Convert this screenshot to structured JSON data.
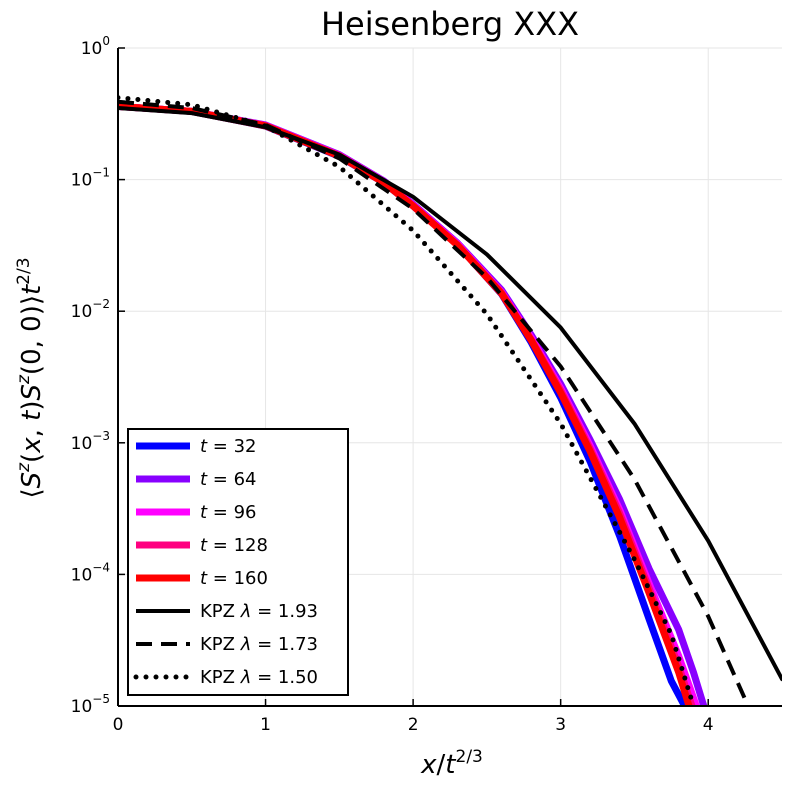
{
  "chart_data": {
    "type": "line",
    "title": "Heisenberg XXX",
    "xlabel": "x/t^{2/3}",
    "ylabel": "⟨S^z(x, t)S^z(0, 0)⟩t^{2/3}",
    "xlim": [
      0,
      4.5
    ],
    "ylim_log10": [
      -5,
      0
    ],
    "yscale": "log",
    "grid": true,
    "legend_position": "bottom-left",
    "x_ticks": [
      {
        "value": 0,
        "label": "0"
      },
      {
        "value": 1,
        "label": "1"
      },
      {
        "value": 2,
        "label": "2"
      },
      {
        "value": 3,
        "label": "3"
      },
      {
        "value": 4,
        "label": "4"
      }
    ],
    "y_ticks": [
      {
        "exp": 0,
        "base": "10",
        "sup": "0"
      },
      {
        "exp": -1,
        "base": "10",
        "sup": "−1"
      },
      {
        "exp": -2,
        "base": "10",
        "sup": "−2"
      },
      {
        "exp": -3,
        "base": "10",
        "sup": "−3"
      },
      {
        "exp": -4,
        "base": "10",
        "sup": "−4"
      },
      {
        "exp": -5,
        "base": "10",
        "sup": "−5"
      }
    ],
    "series": [
      {
        "name": "t = 32",
        "label_var": "t",
        "label_val": "32",
        "color": "#0000ff",
        "style": "solid",
        "width": 7,
        "x": [
          0,
          0.5,
          1,
          1.5,
          1.8,
          2.0,
          2.3,
          2.6,
          2.8,
          3.0,
          3.2,
          3.4,
          3.6,
          3.75,
          3.84
        ],
        "y": [
          0.36,
          0.33,
          0.255,
          0.15,
          0.095,
          0.063,
          0.032,
          0.0135,
          0.0058,
          0.0022,
          0.00072,
          0.000195,
          4.55e-05,
          1.55e-05,
          1e-05
        ]
      },
      {
        "name": "t = 64",
        "label_var": "t",
        "label_val": "64",
        "color": "#8800ff",
        "style": "solid",
        "width": 7,
        "x": [
          0,
          0.5,
          1,
          1.5,
          1.8,
          2.0,
          2.3,
          2.6,
          2.8,
          3.0,
          3.2,
          3.4,
          3.6,
          3.8,
          3.9,
          3.97
        ],
        "y": [
          0.36,
          0.33,
          0.26,
          0.155,
          0.098,
          0.065,
          0.033,
          0.0145,
          0.0066,
          0.0028,
          0.00105,
          0.00037,
          0.00011,
          3.8e-05,
          1.8e-05,
          1e-05
        ]
      },
      {
        "name": "t = 96",
        "label_var": "t",
        "label_val": "96",
        "color": "#ff00ff",
        "style": "solid",
        "width": 7,
        "x": [
          0,
          0.5,
          1,
          1.5,
          1.8,
          2.0,
          2.3,
          2.6,
          2.8,
          3.0,
          3.2,
          3.4,
          3.6,
          3.8,
          3.92
        ],
        "y": [
          0.36,
          0.33,
          0.258,
          0.153,
          0.097,
          0.064,
          0.0325,
          0.014,
          0.0063,
          0.0026,
          0.00095,
          0.00031,
          8.5e-05,
          2.4e-05,
          1e-05
        ]
      },
      {
        "name": "t = 128",
        "label_var": "t",
        "label_val": "128",
        "color": "#ff0080",
        "style": "solid",
        "width": 7,
        "x": [
          0,
          0.5,
          1,
          1.5,
          1.8,
          2.0,
          2.3,
          2.6,
          2.8,
          3.0,
          3.2,
          3.4,
          3.6,
          3.8,
          3.89
        ],
        "y": [
          0.36,
          0.33,
          0.257,
          0.152,
          0.096,
          0.0635,
          0.032,
          0.0138,
          0.0061,
          0.0025,
          0.0009,
          0.00029,
          7.8e-05,
          2e-05,
          1e-05
        ]
      },
      {
        "name": "t = 160",
        "label_var": "t",
        "label_val": "160",
        "color": "#ff0000",
        "style": "solid",
        "width": 7,
        "x": [
          0,
          0.5,
          1,
          1.5,
          1.8,
          2.0,
          2.3,
          2.6,
          2.8,
          3.0,
          3.2,
          3.4,
          3.6,
          3.8,
          3.87
        ],
        "y": [
          0.36,
          0.33,
          0.256,
          0.151,
          0.095,
          0.063,
          0.0318,
          0.0136,
          0.006,
          0.0024,
          0.00086,
          0.00027,
          7.2e-05,
          1.8e-05,
          1e-05
        ]
      },
      {
        "name": "KPZ λ = 1.93",
        "label_var": "KPZ λ",
        "label_val": "1.93",
        "color": "#000000",
        "style": "solid",
        "width": 4,
        "x": [
          0,
          0.5,
          1,
          1.5,
          2.0,
          2.5,
          3.0,
          3.5,
          4.0,
          4.5
        ],
        "y": [
          0.35,
          0.32,
          0.25,
          0.155,
          0.074,
          0.027,
          0.0075,
          0.0014,
          0.00018,
          1.6e-05
        ]
      },
      {
        "name": "KPZ λ = 1.73",
        "label_var": "KPZ λ",
        "label_val": "1.73",
        "color": "#000000",
        "style": "dash",
        "width": 4,
        "x": [
          0,
          0.5,
          1,
          1.5,
          2.0,
          2.5,
          3.0,
          3.5,
          4.0,
          4.27
        ],
        "y": [
          0.39,
          0.35,
          0.26,
          0.145,
          0.06,
          0.018,
          0.0038,
          0.00053,
          4.8e-05,
          1e-05
        ]
      },
      {
        "name": "KPZ λ = 1.50",
        "label_var": "KPZ λ",
        "label_val": "1.50",
        "color": "#000000",
        "style": "dot",
        "width": 5,
        "x": [
          0,
          0.5,
          1,
          1.5,
          2.0,
          2.5,
          3.0,
          3.5,
          3.75,
          3.9
        ],
        "y": [
          0.42,
          0.37,
          0.255,
          0.125,
          0.041,
          0.0095,
          0.0014,
          0.00013,
          3.5e-05,
          1e-05
        ]
      }
    ]
  }
}
